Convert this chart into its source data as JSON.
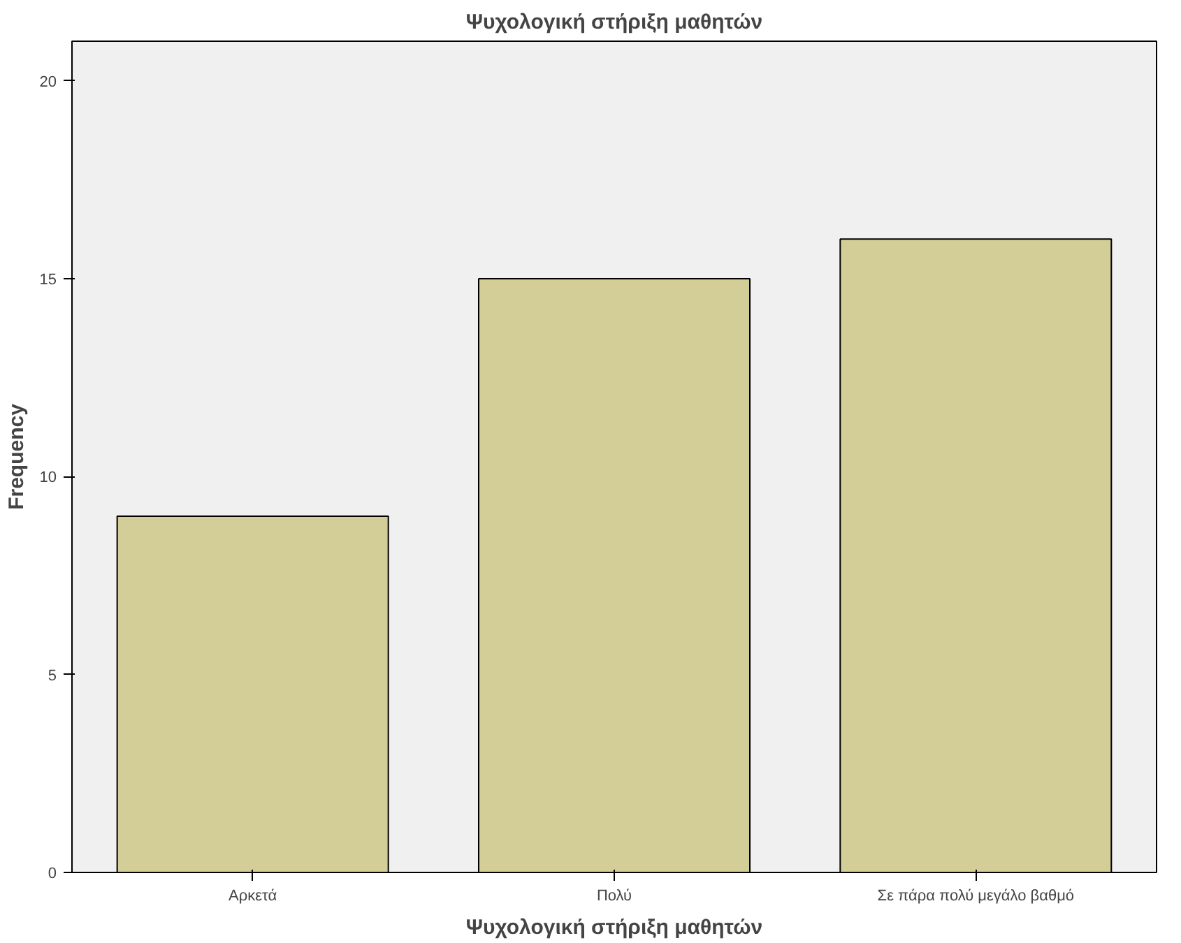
{
  "chart_data": {
    "type": "bar",
    "title": "Ψυχολογική στήριξη μαθητών",
    "xlabel": "Ψυχολογική στήριξη μαθητών",
    "ylabel": "Frequency",
    "categories": [
      "Αρκετά",
      "Πολύ",
      "Σε πάρα πολύ μεγάλο βαθμό"
    ],
    "values": [
      9,
      15,
      16
    ],
    "color": "#d3ce97",
    "ylim": [
      0,
      21
    ],
    "yticks": [
      0,
      5,
      10,
      15,
      20
    ],
    "grid": false
  }
}
